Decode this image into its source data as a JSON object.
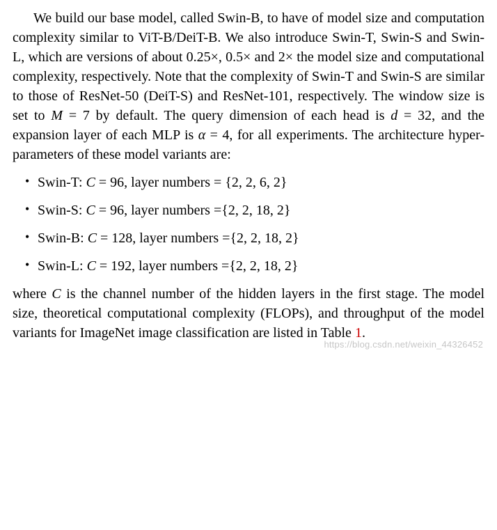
{
  "paragraph1": {
    "pre": "We build our base model, called Swin-B, to have of model size and computation complexity similar to ViT-B/DeiT-B. We also introduce Swin-T, Swin-S and Swin-L, which are versions of about 0.25×, 0.5× and 2× the model size and computational complexity, respectively. Note that the complexity of Swin-T and Swin-S are similar to those of ResNet-50 (DeiT-S) and ResNet-101, respectively. The window size is set to ",
    "M": "M",
    "eqM": " = 7 by default. The query dimension of each head is ",
    "d": "d",
    "eqd": " = 32, and the expansion layer of each MLP is ",
    "alpha": "α",
    "eqalpha": " = 4, for all experiments. The architecture hyper-parameters of these model variants are:"
  },
  "variants": {
    "t": {
      "name": "Swin-T: ",
      "Cvar": "C",
      "Cval": " = 96, layer numbers = {2, 2, 6, 2}"
    },
    "s": {
      "name": "Swin-S: ",
      "Cvar": "C",
      "Cval": " = 96, layer numbers ={2, 2, 18, 2}"
    },
    "b": {
      "name": "Swin-B: ",
      "Cvar": "C",
      "Cval": " = 128, layer numbers ={2, 2, 18, 2}"
    },
    "l": {
      "name": "Swin-L: ",
      "Cvar": "C",
      "Cval": " = 192, layer numbers ={2, 2, 18, 2}"
    }
  },
  "paragraph2": {
    "pre": "where ",
    "Cvar": "C",
    "mid": " is the channel number of the hidden layers in the first stage. The model size, theoretical computational complexity (FLOPs), and throughput of the model variants for ImageNet image classification are listed in Table ",
    "tablenum": "1",
    "post": "."
  },
  "watermark": "https://blog.csdn.net/weixin_44326452",
  "styling": {
    "font_family": "Times New Roman",
    "font_size_pt": 20,
    "line_height": 1.4,
    "text_color": "#000000",
    "background_color": "#ffffff",
    "link_color": "#cc0000",
    "watermark_color": "rgba(150,150,150,0.55)",
    "watermark_fontsize": 13,
    "bullet_char": "•",
    "indent_em": 1.5
  }
}
